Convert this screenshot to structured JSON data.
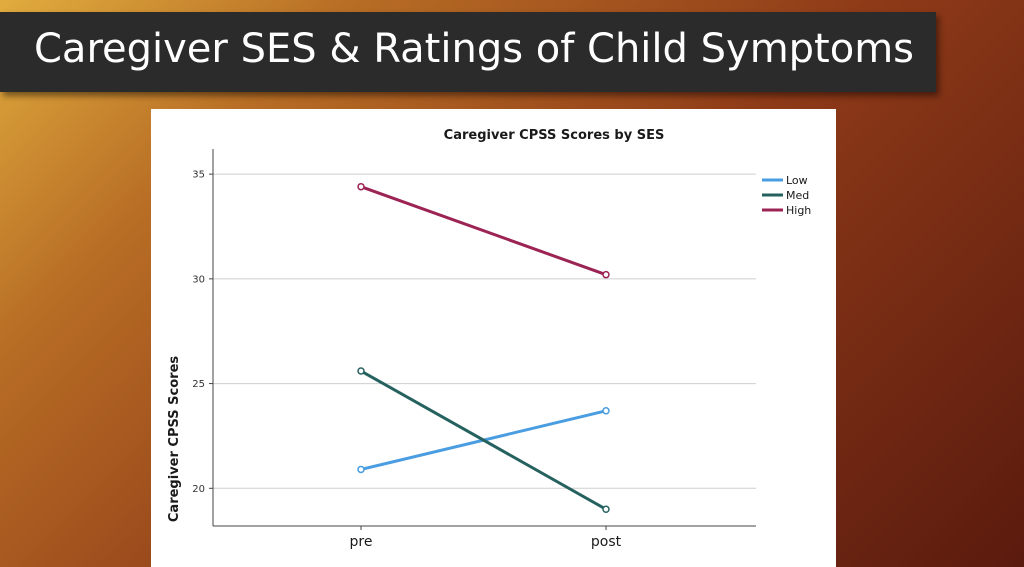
{
  "slide": {
    "title": "Caregiver SES & Ratings of Child Symptoms"
  },
  "chart_data": {
    "type": "line",
    "title": "Caregiver CPSS Scores by SES",
    "xlabel": "",
    "ylabel": "Caregiver CPSS Scores",
    "categories": [
      "pre",
      "post"
    ],
    "ylim": [
      18.2,
      36.2
    ],
    "yticks": [
      20,
      25,
      30,
      35
    ],
    "grid": true,
    "legend_position": "top-right",
    "series": [
      {
        "name": "Low",
        "values": [
          20.9,
          23.7
        ],
        "color": "#4a9de0"
      },
      {
        "name": "Med",
        "values": [
          25.6,
          19.0
        ],
        "color": "#25615e"
      },
      {
        "name": "High",
        "values": [
          34.4,
          30.2
        ],
        "color": "#9c2455"
      }
    ]
  }
}
